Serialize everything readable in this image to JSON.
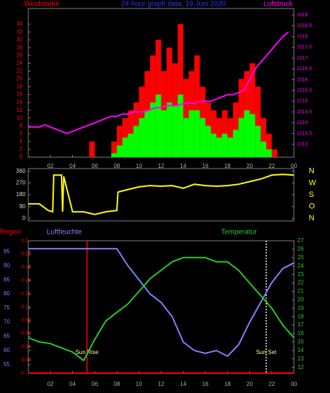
{
  "chart_data": [
    {
      "type": "bar",
      "title": "24-hour graph data, 19 Juni 2020",
      "ylabel": "Windstärke",
      "y2label": "Luftdruck",
      "x": [
        0,
        0.5,
        1,
        1.5,
        2,
        2.5,
        3,
        3.5,
        4,
        4.5,
        5,
        5.5,
        6,
        6.5,
        7,
        7.5,
        8,
        8.5,
        9,
        9.5,
        10,
        10.5,
        11,
        11.5,
        12,
        12.5,
        13,
        13.5,
        14,
        14.5,
        15,
        15.5,
        16,
        16.5,
        17,
        17.5,
        18,
        18.5,
        19,
        19.5,
        20,
        20.5,
        21,
        21.5,
        22,
        22.5,
        23,
        23.5
      ],
      "series": [
        {
          "color": "#ff0000",
          "values": [
            0,
            0,
            0,
            0,
            0,
            0,
            0,
            0,
            0,
            0,
            0,
            4,
            0,
            0,
            0,
            4,
            8,
            10,
            12,
            14,
            18,
            22,
            26,
            30,
            22,
            28,
            24,
            34,
            20,
            22,
            26,
            18,
            14,
            12,
            10,
            12,
            10,
            14,
            20,
            22,
            24,
            18,
            10,
            6,
            2,
            0,
            0,
            0
          ]
        },
        {
          "color": "#00ff00",
          "values": [
            0,
            0,
            0,
            0,
            0,
            0,
            0,
            0,
            0,
            0,
            0,
            0,
            0,
            0,
            0,
            1,
            3,
            5,
            6,
            8,
            10,
            12,
            14,
            16,
            12,
            14,
            13,
            16,
            10,
            12,
            12,
            10,
            8,
            6,
            5,
            6,
            5,
            7,
            10,
            12,
            11,
            8,
            4,
            2,
            0,
            0,
            0,
            0
          ]
        },
        {
          "type": "line",
          "axis": "y2",
          "color": "#ff00ff",
          "values": [
            1013.8,
            1013.8,
            1013.8,
            1013.9,
            1013.8,
            1013.7,
            1013.6,
            1013.5,
            1013.6,
            1013.7,
            1013.8,
            1013.9,
            1014.0,
            1014.1,
            1014.2,
            1014.3,
            1014.3,
            1014.4,
            1014.4,
            1014.5,
            1014.5,
            1014.5,
            1014.6,
            1014.7,
            1014.7,
            1014.8,
            1014.8,
            1014.8,
            1014.9,
            1014.9,
            1014.9,
            1015.0,
            1015.0,
            1015.0,
            1015.1,
            1015.2,
            1015.3,
            1015.3,
            1015.4,
            1015.5,
            1016.0,
            1016.5,
            1016.8,
            1017.1,
            1017.4,
            1017.7,
            1018.0,
            1018.2
          ]
        }
      ],
      "xlim": [
        0,
        24
      ],
      "xticks": [
        {
          "value": 2,
          "label": "02"
        },
        {
          "value": 4,
          "label": "04"
        },
        {
          "value": 6,
          "label": "06"
        },
        {
          "value": 8,
          "label": "08"
        },
        10,
        12,
        14,
        16,
        18,
        20,
        22,
        {
          "value": 24,
          "label": "00"
        }
      ],
      "ylim": [
        0,
        38
      ],
      "yticks": [
        0,
        2,
        4,
        6,
        8,
        10,
        12,
        14,
        16,
        18,
        20,
        22,
        24,
        26,
        28,
        30,
        32,
        34
      ],
      "y2lim": [
        1012.4,
        1019.3
      ],
      "y2ticks": [
        1013,
        1013.5,
        1014,
        1014.5,
        1015,
        1015.5,
        1016,
        1016.5,
        1017,
        1017.5,
        1018,
        1018.5,
        1019
      ]
    },
    {
      "type": "line",
      "x": [
        0,
        1,
        1.8,
        2.2,
        2.3,
        3.0,
        3.1,
        3.2,
        4,
        5,
        6,
        7,
        8,
        8.1,
        9,
        10,
        11,
        12,
        13,
        14,
        15,
        16,
        17,
        18,
        19,
        20,
        21,
        22,
        23,
        24
      ],
      "series": [
        {
          "color": "#ffff00",
          "values": [
            110,
            110,
            60,
            50,
            330,
            330,
            50,
            320,
            50,
            50,
            30,
            50,
            60,
            200,
            220,
            240,
            250,
            245,
            250,
            230,
            260,
            250,
            245,
            250,
            260,
            280,
            300,
            330,
            335,
            330
          ]
        }
      ],
      "xlim": [
        0,
        24
      ],
      "ylim": [
        -20,
        380
      ],
      "yticks": [
        0,
        90,
        180,
        270,
        360
      ],
      "y2lim": [
        -20,
        380
      ],
      "y2ticks": [
        {
          "value": 0,
          "label": "N"
        },
        {
          "value": 90,
          "label": "O"
        },
        {
          "value": 180,
          "label": "S"
        },
        {
          "value": 270,
          "label": "W"
        },
        {
          "value": 360,
          "label": "N"
        }
      ]
    },
    {
      "type": "line",
      "ylabel": "Luftfeuchte",
      "y2label": "Temperatur",
      "y3label": "Regen",
      "x": [
        0,
        1,
        2,
        3,
        4,
        5,
        6,
        7,
        8,
        9,
        10,
        11,
        12,
        13,
        14,
        15,
        16,
        17,
        18,
        19,
        20,
        21,
        22,
        23,
        24
      ],
      "series": [
        {
          "color": "#8080ff",
          "values": [
            96,
            96,
            96,
            96,
            96,
            96,
            96,
            96,
            96,
            90,
            85,
            80,
            77,
            72,
            63,
            60,
            59,
            60,
            58,
            62,
            70,
            77,
            84,
            89,
            91
          ]
        },
        {
          "axis": "y2",
          "color": "#22cc22",
          "values": [
            15.5,
            15,
            14.8,
            14.3,
            13.8,
            12.8,
            15.3,
            17.5,
            18.5,
            19.5,
            21,
            22.5,
            23.5,
            24.5,
            25,
            25,
            25,
            24.5,
            24.5,
            23.5,
            22,
            20.5,
            19,
            17,
            15.5
          ]
        },
        {
          "axis": "y3",
          "color": "#ff0000",
          "values": [
            0,
            0,
            0,
            0,
            0,
            0,
            0,
            0,
            0,
            0,
            0,
            0,
            0,
            0,
            0,
            0,
            0,
            0,
            0,
            0,
            0,
            0,
            0,
            0,
            0
          ]
        }
      ],
      "annotations": [
        {
          "text": "Sun Rise",
          "x": 5.3,
          "color": "#ff0000"
        },
        {
          "text": "Sun Set",
          "x": 21.5,
          "color": "#ffffff"
        }
      ],
      "xlim": [
        0,
        24
      ],
      "xticks": [
        {
          "value": 2,
          "label": "02"
        },
        {
          "value": 4,
          "label": "04"
        },
        {
          "value": 6,
          "label": "06"
        },
        {
          "value": 8,
          "label": "08"
        },
        10,
        12,
        14,
        16,
        18,
        20,
        22,
        {
          "value": 24,
          "label": "00"
        }
      ],
      "ylim": [
        52,
        98.8
      ],
      "yticks": [
        55,
        60,
        65,
        70,
        75,
        80,
        85,
        90,
        95
      ],
      "y2lim": [
        11.3,
        27
      ],
      "y2ticks": [
        12,
        13,
        14,
        15,
        16,
        17,
        18,
        19,
        20,
        21,
        22,
        23,
        24,
        25,
        26,
        27
      ],
      "y3lim": [
        0,
        0.2
      ],
      "y3ticks": [
        0,
        0.02,
        0.04,
        0.06,
        0.08,
        0.1,
        0.12,
        0.14,
        0.16,
        0.18,
        0.2
      ]
    }
  ]
}
